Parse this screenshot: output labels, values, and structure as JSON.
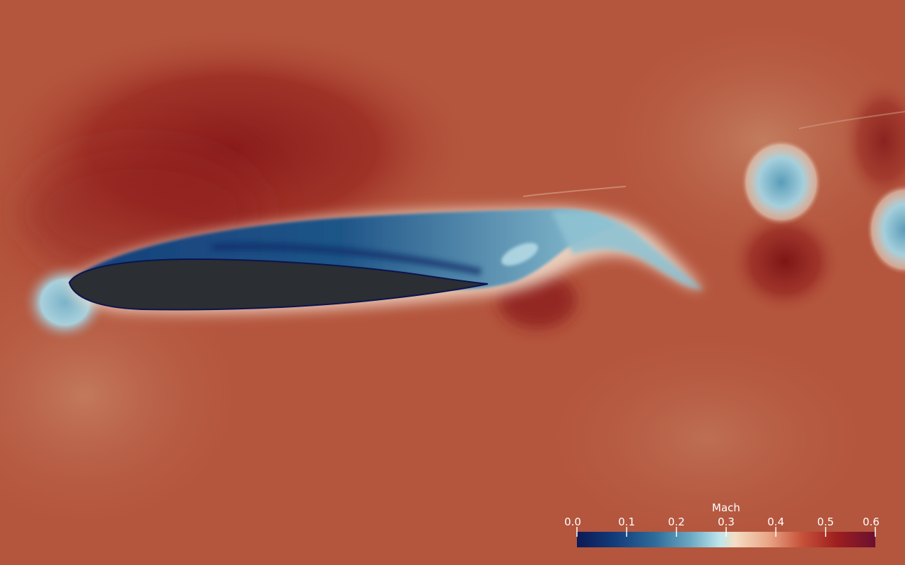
{
  "visualization": {
    "field": "Mach",
    "colormap": [
      "#0c1a55",
      "#123a78",
      "#2d6b9a",
      "#6aa8c2",
      "#bfe6ee",
      "#f4ddc4",
      "#e9a789",
      "#c8543b",
      "#9e1f1f",
      "#6a1030"
    ],
    "background_color": "#b4553d",
    "body_color": "#2b2e33"
  },
  "legend": {
    "title": "Mach",
    "ticks": [
      "0.0",
      "0.1",
      "0.2",
      "0.3",
      "0.4",
      "0.5",
      "0.6"
    ],
    "range": [
      0.0,
      0.6
    ]
  }
}
